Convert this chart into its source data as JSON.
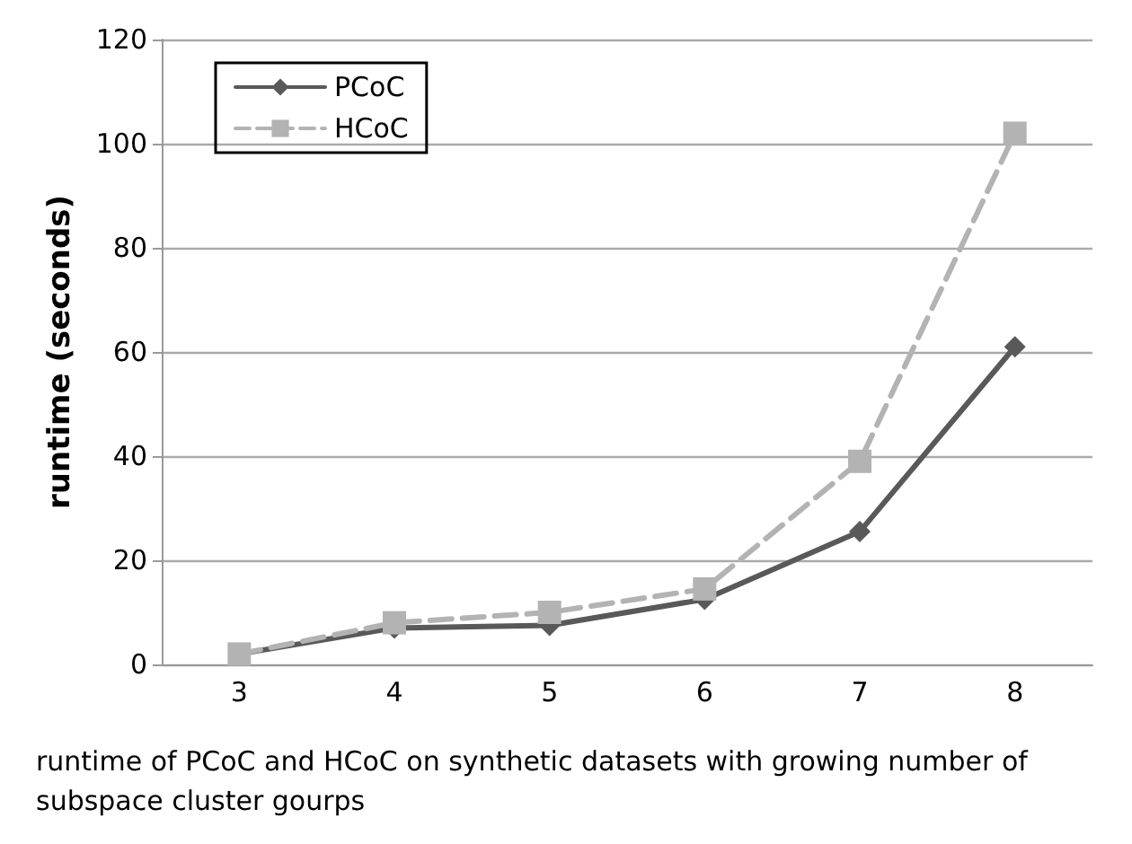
{
  "chart_data": {
    "type": "line",
    "categories": [
      "3",
      "4",
      "5",
      "6",
      "7",
      "8"
    ],
    "xlabel": "runtime of PCoC and HCoC on synthetic datasets with growing number of subspace cluster gourps",
    "ylabel": "runtime (seconds)",
    "series": [
      {
        "name": "PCoC",
        "color": "#595959",
        "values": [
          2,
          7,
          7.5,
          12.5,
          25.5,
          61
        ],
        "marker": "diamond",
        "line_style": "solid"
      },
      {
        "name": "HCoC",
        "color": "#b3b3b3",
        "values": [
          2,
          8,
          10,
          14.5,
          39,
          102
        ],
        "marker": "square",
        "line_style": "dashed"
      }
    ],
    "ylim": [
      0,
      120
    ],
    "yticks": [
      0,
      20,
      40,
      60,
      80,
      100,
      120
    ],
    "grid": "y",
    "legend": "top left"
  }
}
